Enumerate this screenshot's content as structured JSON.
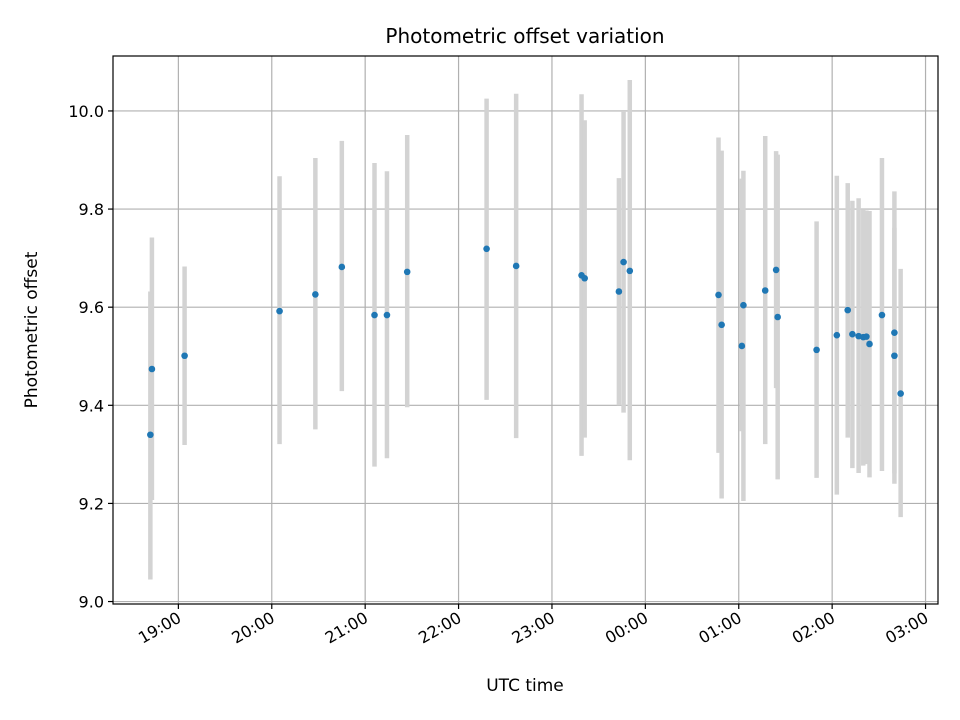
{
  "chart_data": {
    "type": "scatter",
    "title": "Photometric offset variation",
    "xlabel": "UTC time",
    "ylabel": "Photometric offset",
    "xlim": [
      "18:18",
      "03:08"
    ],
    "ylim": [
      8.995,
      10.112
    ],
    "xticks": [
      "19:00",
      "20:00",
      "21:00",
      "22:00",
      "23:00",
      "00:00",
      "01:00",
      "02:00",
      "03:00"
    ],
    "yticks": [
      "9.0",
      "9.2",
      "9.4",
      "9.6",
      "9.8",
      "10.0"
    ],
    "grid": true,
    "colors": {
      "point": "#1f77b4",
      "errorbar": "#d3d3d3",
      "grid": "#b0b0b0"
    },
    "points": [
      {
        "x": "18:42",
        "y": 9.34,
        "err": [
          9.045,
          9.632
        ]
      },
      {
        "x": "18:43",
        "y": 9.474,
        "err": [
          9.207,
          9.742
        ]
      },
      {
        "x": "19:04",
        "y": 9.501,
        "err": [
          9.319,
          9.683
        ]
      },
      {
        "x": "20:05",
        "y": 9.592,
        "err": [
          9.321,
          9.867
        ]
      },
      {
        "x": "20:28",
        "y": 9.626,
        "err": [
          9.351,
          9.904
        ]
      },
      {
        "x": "20:45",
        "y": 9.682,
        "err": [
          9.429,
          9.939
        ]
      },
      {
        "x": "21:06",
        "y": 9.584,
        "err": [
          9.275,
          9.894
        ]
      },
      {
        "x": "21:14",
        "y": 9.584,
        "err": [
          9.292,
          9.877
        ]
      },
      {
        "x": "21:27",
        "y": 9.672,
        "err": [
          9.396,
          9.951
        ]
      },
      {
        "x": "22:18",
        "y": 9.719,
        "err": [
          9.411,
          10.025
        ]
      },
      {
        "x": "22:37",
        "y": 9.684,
        "err": [
          9.333,
          10.035
        ]
      },
      {
        "x": "23:19",
        "y": 9.665,
        "err": [
          9.297,
          10.034
        ]
      },
      {
        "x": "23:21",
        "y": 9.659,
        "err": [
          9.334,
          9.981
        ]
      },
      {
        "x": "23:43",
        "y": 9.632,
        "err": [
          9.4,
          9.863
        ]
      },
      {
        "x": "23:46",
        "y": 9.692,
        "err": [
          9.385,
          10.0
        ]
      },
      {
        "x": "23:50",
        "y": 9.674,
        "err": [
          9.288,
          10.063
        ]
      },
      {
        "x": "00:47",
        "y": 9.625,
        "err": [
          9.303,
          9.946
        ]
      },
      {
        "x": "00:49",
        "y": 9.564,
        "err": [
          9.21,
          9.919
        ]
      },
      {
        "x": "01:02",
        "y": 9.521,
        "err": [
          9.347,
          9.862
        ]
      },
      {
        "x": "01:03",
        "y": 9.604,
        "err": [
          9.205,
          9.878
        ]
      },
      {
        "x": "01:17",
        "y": 9.634,
        "err": [
          9.321,
          9.949
        ]
      },
      {
        "x": "01:24",
        "y": 9.676,
        "err": [
          9.435,
          9.918
        ]
      },
      {
        "x": "01:25",
        "y": 9.58,
        "err": [
          9.249,
          9.911
        ]
      },
      {
        "x": "01:50",
        "y": 9.513,
        "err": [
          9.252,
          9.775
        ]
      },
      {
        "x": "02:03",
        "y": 9.543,
        "err": [
          9.218,
          9.868
        ]
      },
      {
        "x": "02:10",
        "y": 9.594,
        "err": [
          9.334,
          9.853
        ]
      },
      {
        "x": "02:13",
        "y": 9.545,
        "err": [
          9.272,
          9.817
        ]
      },
      {
        "x": "02:17",
        "y": 9.541,
        "err": [
          9.262,
          9.822
        ]
      },
      {
        "x": "02:20",
        "y": 9.539,
        "err": [
          9.277,
          9.8
        ]
      },
      {
        "x": "02:22",
        "y": 9.54,
        "err": [
          9.28,
          9.797
        ]
      },
      {
        "x": "02:24",
        "y": 9.525,
        "err": [
          9.253,
          9.796
        ]
      },
      {
        "x": "02:32",
        "y": 9.584,
        "err": [
          9.266,
          9.904
        ]
      },
      {
        "x": "02:40",
        "y": 9.548,
        "err": [
          9.261,
          9.836
        ]
      },
      {
        "x": "02:40",
        "y": 9.501,
        "err": [
          9.24,
          9.762
        ]
      },
      {
        "x": "02:44",
        "y": 9.424,
        "err": [
          9.172,
          9.678
        ]
      }
    ]
  }
}
